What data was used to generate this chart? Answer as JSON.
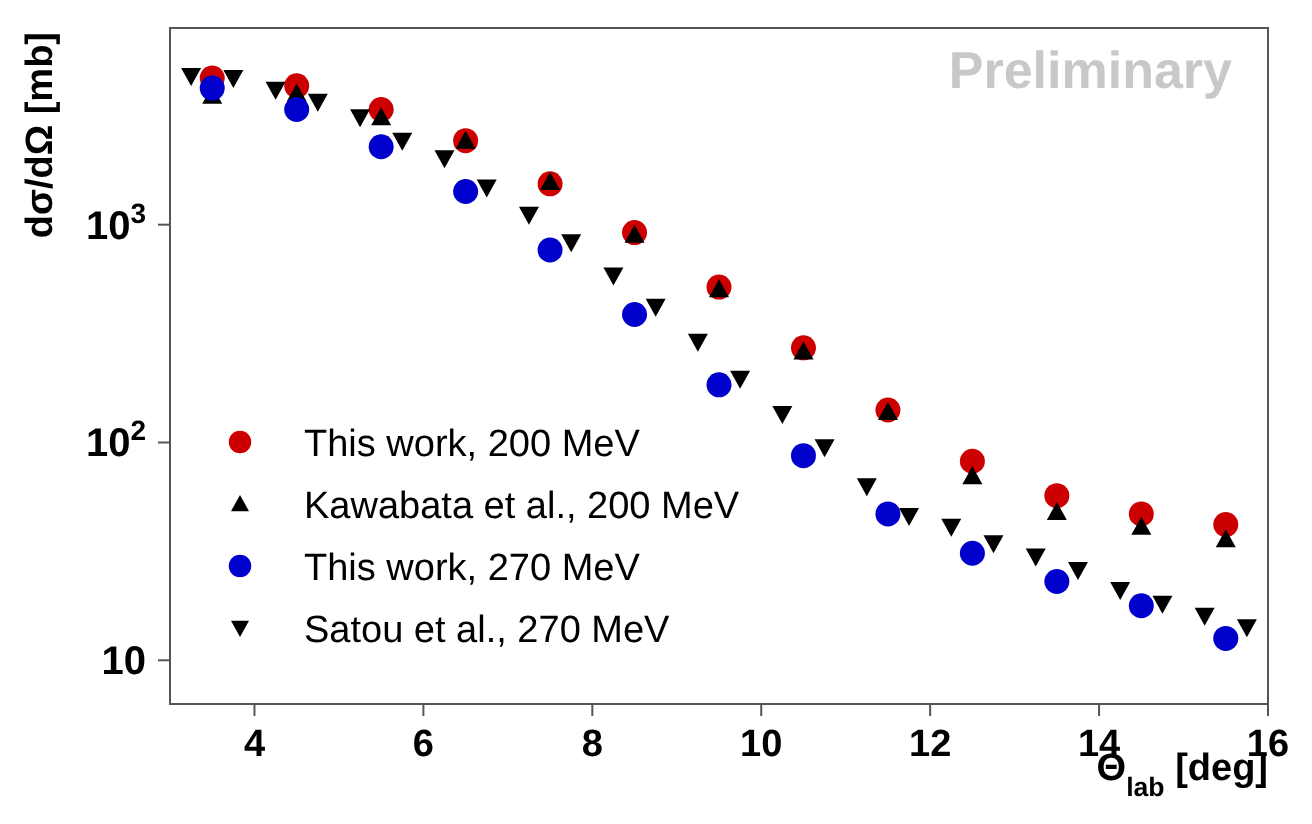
{
  "chart_data": {
    "type": "scatter",
    "xlabel": "Θ$_{lab}$ [deg]",
    "ylabel": "dσ/dΩ [mb]",
    "annotations": [
      "Preliminary"
    ],
    "log": "y",
    "grid": false,
    "legend": "bottom left",
    "xlim": [
      3,
      16
    ],
    "xticks": [
      4,
      6,
      8,
      10,
      12,
      14,
      16
    ],
    "ylim": [
      6.3,
      8000
    ],
    "yticks": [
      {
        "value": 10,
        "label": "10"
      },
      {
        "value": 100,
        "label": "10$^{2}$"
      },
      {
        "value": 1000,
        "label": "10$^{3}$"
      }
    ],
    "series": [
      {
        "name": "This work, 200 MeV",
        "color": "#cc0000",
        "marker": "circle",
        "x": [
          3.5,
          4.5,
          5.5,
          6.5,
          7.5,
          8.5,
          9.5,
          10.5,
          11.5,
          12.5,
          13.5,
          14.5,
          15.5
        ],
        "values": [
          4710,
          4340,
          3380,
          2430,
          1540,
          920,
          517,
          272,
          141,
          82,
          57,
          47,
          42
        ]
      },
      {
        "name": "Kawabata et al., 200 MeV",
        "color": "#000000",
        "marker": "triangle",
        "x": [
          3.5,
          4.5,
          5.5,
          6.5,
          7.5,
          8.5,
          9.5,
          10.5,
          11.5,
          12.5,
          13.5,
          14.5,
          15.5
        ],
        "values": [
          3910,
          4000,
          3110,
          2430,
          1570,
          900,
          506,
          262,
          138,
          70,
          48,
          41,
          36
        ]
      },
      {
        "name": "This work, 270 MeV",
        "color": "#0000cc",
        "marker": "circle",
        "x": [
          3.5,
          4.5,
          5.5,
          6.5,
          7.5,
          8.5,
          9.5,
          10.5,
          11.5,
          12.5,
          13.5,
          14.5,
          15.5
        ],
        "values": [
          4240,
          3380,
          2280,
          1420,
          765,
          387,
          184,
          87,
          47,
          31,
          23,
          17.8,
          12.6
        ]
      },
      {
        "name": "Satou et al., 270 MeV",
        "color": "#000000",
        "marker": "triangle-down",
        "x": [
          3.25,
          3.75,
          4.25,
          4.75,
          5.25,
          5.75,
          6.25,
          6.75,
          7.25,
          7.75,
          8.25,
          8.75,
          9.25,
          9.75,
          10.25,
          10.75,
          11.25,
          11.75,
          12.25,
          12.75,
          13.25,
          13.75,
          14.25,
          14.75,
          15.25,
          15.75
        ],
        "values": [
          4810,
          4710,
          4160,
          3670,
          3110,
          2430,
          2020,
          1480,
          1110,
          830,
          585,
          420,
          290,
          196,
          135,
          95,
          63,
          46,
          41,
          34.5,
          30,
          26,
          21,
          18.2,
          16,
          14.2
        ]
      }
    ]
  }
}
